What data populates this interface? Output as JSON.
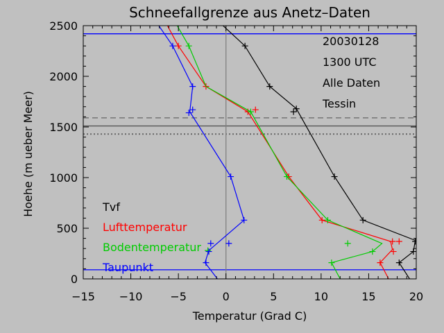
{
  "chart_data": {
    "type": "line",
    "title": "Schneefallgrenze aus Anetz–Daten",
    "xlabel": "Temperatur (Grad C)",
    "ylabel": "Hoehe (m ueber Meer)",
    "xlim": [
      -15,
      20
    ],
    "ylim": [
      0,
      2500
    ],
    "x_ticks": [
      -15,
      -10,
      -5,
      0,
      5,
      10,
      15,
      20
    ],
    "y_ticks": [
      0,
      500,
      1000,
      1500,
      2000,
      2500
    ],
    "info_lines": [
      "20030128",
      "1300 UTC",
      "Alle Daten",
      "Tessin"
    ],
    "legend_placement": "bottom-left",
    "series": [
      {
        "name": "Tvf",
        "color": "#000000",
        "line": [
          [
            -1,
            2560
          ],
          [
            2,
            2300
          ],
          [
            4.6,
            1900
          ],
          [
            7.4,
            1680
          ],
          [
            11.4,
            1010
          ],
          [
            14.4,
            580
          ],
          [
            19.9,
            380
          ],
          [
            19.7,
            270
          ],
          [
            18.2,
            160
          ],
          [
            19.3,
            0
          ]
        ],
        "markers": [
          [
            2,
            2300
          ],
          [
            4.6,
            1900
          ],
          [
            7.4,
            1680
          ],
          [
            7.1,
            1650
          ],
          [
            11.4,
            1010
          ],
          [
            14.4,
            580
          ],
          [
            19.9,
            370
          ],
          [
            19.7,
            270
          ],
          [
            18.2,
            160
          ]
        ]
      },
      {
        "name": "Lufttemperatur",
        "color": "#ff0000",
        "line": [
          [
            -6.5,
            2560
          ],
          [
            -5,
            2300
          ],
          [
            -2.1,
            1900
          ],
          [
            2.3,
            1650
          ],
          [
            6.6,
            1010
          ],
          [
            10.1,
            580
          ],
          [
            17.3,
            370
          ],
          [
            17.5,
            290
          ],
          [
            16.2,
            160
          ],
          [
            17.1,
            0
          ]
        ],
        "markers": [
          [
            -5,
            2300
          ],
          [
            -2.1,
            1900
          ],
          [
            2.3,
            1650
          ],
          [
            3.1,
            1670
          ],
          [
            6.6,
            1010
          ],
          [
            10.1,
            580
          ],
          [
            17.5,
            370
          ],
          [
            18.2,
            370
          ],
          [
            17.6,
            270
          ],
          [
            16.2,
            160
          ]
        ]
      },
      {
        "name": "Bodentemperatur",
        "color": "#00cc00",
        "line": [
          [
            -5.5,
            2560
          ],
          [
            -3.9,
            2300
          ],
          [
            -2.1,
            1900
          ],
          [
            2.6,
            1650
          ],
          [
            6.4,
            1010
          ],
          [
            10.7,
            580
          ],
          [
            16.4,
            350
          ],
          [
            15.4,
            270
          ],
          [
            11.1,
            160
          ],
          [
            12,
            0
          ]
        ],
        "markers": [
          [
            -3.9,
            2300
          ],
          [
            2.6,
            1650
          ],
          [
            6.4,
            1010
          ],
          [
            10.7,
            580
          ],
          [
            12.8,
            350
          ],
          [
            15.4,
            270
          ],
          [
            11.1,
            160
          ],
          [
            -1.9,
            280
          ]
        ]
      },
      {
        "name": "Taupunkt",
        "color": "#0000ff",
        "line": [
          [
            -7.5,
            2560
          ],
          [
            -5.6,
            2300
          ],
          [
            -3.5,
            1900
          ],
          [
            -3.8,
            1650
          ],
          [
            0.5,
            1010
          ],
          [
            1.9,
            580
          ],
          [
            -1.8,
            280
          ],
          [
            -2.2,
            160
          ],
          [
            -0.9,
            0
          ]
        ],
        "markers": [
          [
            -5.6,
            2300
          ],
          [
            -3.5,
            1900
          ],
          [
            -3.9,
            1640
          ],
          [
            -3.5,
            1670
          ],
          [
            0.5,
            1010
          ],
          [
            1.9,
            580
          ],
          [
            -1.6,
            350
          ],
          [
            0.3,
            350
          ],
          [
            -1.8,
            270
          ],
          [
            -2.1,
            160
          ]
        ]
      }
    ],
    "reference_lines": [
      {
        "type": "h",
        "y": 2420,
        "style": "solid",
        "color": "#0000ff"
      },
      {
        "type": "h",
        "y": 1590,
        "style": "dashed",
        "color": "#666666"
      },
      {
        "type": "h",
        "y": 1510,
        "style": "solid",
        "color": "#555555"
      },
      {
        "type": "h",
        "y": 1430,
        "style": "dotted",
        "color": "#666666"
      },
      {
        "type": "h",
        "y": 90,
        "style": "solid",
        "color": "#0000ff"
      },
      {
        "type": "v",
        "x": 0,
        "style": "solid",
        "color": "#808080"
      }
    ]
  }
}
